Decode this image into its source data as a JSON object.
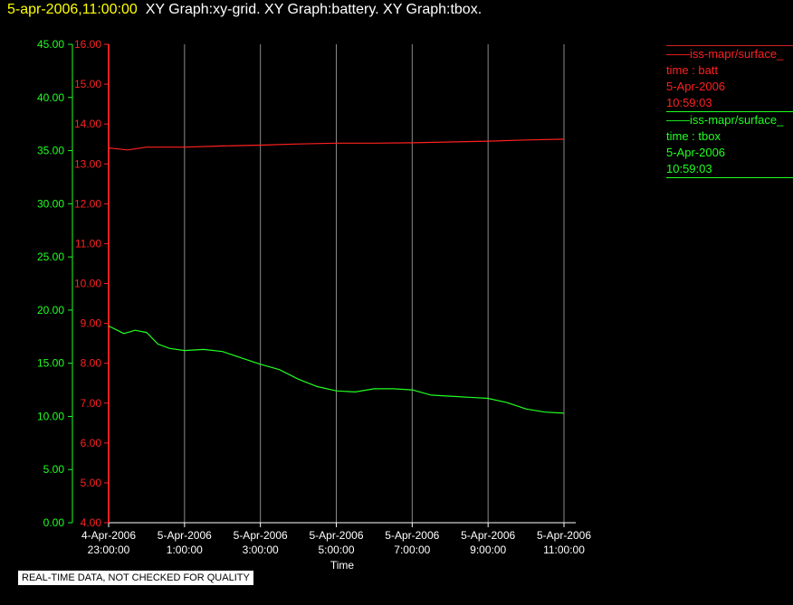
{
  "header": {
    "timestamp": "5-apr-2006,11:00:00",
    "graphs": "XY Graph:xy-grid.  XY Graph:battery.  XY Graph:tbox."
  },
  "badge": "REAL-TIME DATA, NOT CHECKED FOR QUALITY",
  "legend": [
    {
      "name": "iss-mapr/surface_",
      "var": "time : batt",
      "date": "5-Apr-2006",
      "time": "10:59:03",
      "color": "#ff2020"
    },
    {
      "name": "iss-mapr/surface_",
      "var": "time : tbox",
      "date": "5-Apr-2006",
      "time": "10:59:03",
      "color": "#20ff20"
    }
  ],
  "chart_data": {
    "type": "line",
    "xlabel": "Time",
    "x_range_hours": [
      -1,
      11
    ],
    "x_ticks": [
      {
        "hour": -1,
        "line1": "4-Apr-2006",
        "line2": "23:00:00"
      },
      {
        "hour": 1,
        "line1": "5-Apr-2006",
        "line2": "1:00:00"
      },
      {
        "hour": 3,
        "line1": "5-Apr-2006",
        "line2": "3:00:00"
      },
      {
        "hour": 5,
        "line1": "5-Apr-2006",
        "line2": "5:00:00"
      },
      {
        "hour": 7,
        "line1": "5-Apr-2006",
        "line2": "7:00:00"
      },
      {
        "hour": 9,
        "line1": "5-Apr-2006",
        "line2": "9:00:00"
      },
      {
        "hour": 11,
        "line1": "5-Apr-2006",
        "line2": "11:00:00"
      }
    ],
    "left_axis": {
      "color": "#20ff20",
      "range": [
        0,
        45
      ],
      "ticks": [
        "0.00",
        "5.00",
        "10.00",
        "15.00",
        "20.00",
        "25.00",
        "30.00",
        "35.00",
        "40.00",
        "45.00"
      ]
    },
    "right_axis": {
      "color": "#ff2020",
      "range": [
        4,
        16
      ],
      "ticks": [
        "4.00",
        "5.00",
        "6.00",
        "7.00",
        "8.00",
        "9.00",
        "10.00",
        "11.00",
        "12.00",
        "13.00",
        "14.00",
        "15.00",
        "16.00"
      ]
    },
    "grid": true,
    "series": [
      {
        "name": "time : batt",
        "axis": "right",
        "color": "#ff2020",
        "x": [
          -1,
          -0.5,
          0,
          1,
          2,
          3,
          4,
          5,
          6,
          7,
          8,
          9,
          10,
          11
        ],
        "y": [
          13.4,
          13.35,
          13.42,
          13.42,
          13.45,
          13.47,
          13.5,
          13.52,
          13.52,
          13.53,
          13.55,
          13.57,
          13.6,
          13.62
        ]
      },
      {
        "name": "time : tbox",
        "axis": "left",
        "color": "#20ff20",
        "x": [
          -1,
          -0.6,
          -0.3,
          0,
          0.3,
          0.6,
          1,
          1.5,
          2,
          2.5,
          3,
          3.5,
          4,
          4.5,
          5,
          5.5,
          6,
          6.5,
          7,
          7.5,
          8,
          8.5,
          9,
          9.5,
          10,
          10.5,
          11
        ],
        "y": [
          18.5,
          17.8,
          18.1,
          17.9,
          16.8,
          16.4,
          16.2,
          16.3,
          16.1,
          15.5,
          14.9,
          14.4,
          13.5,
          12.8,
          12.4,
          12.3,
          12.6,
          12.6,
          12.5,
          12.0,
          11.9,
          11.8,
          11.7,
          11.3,
          10.7,
          10.4,
          10.3
        ]
      }
    ]
  }
}
